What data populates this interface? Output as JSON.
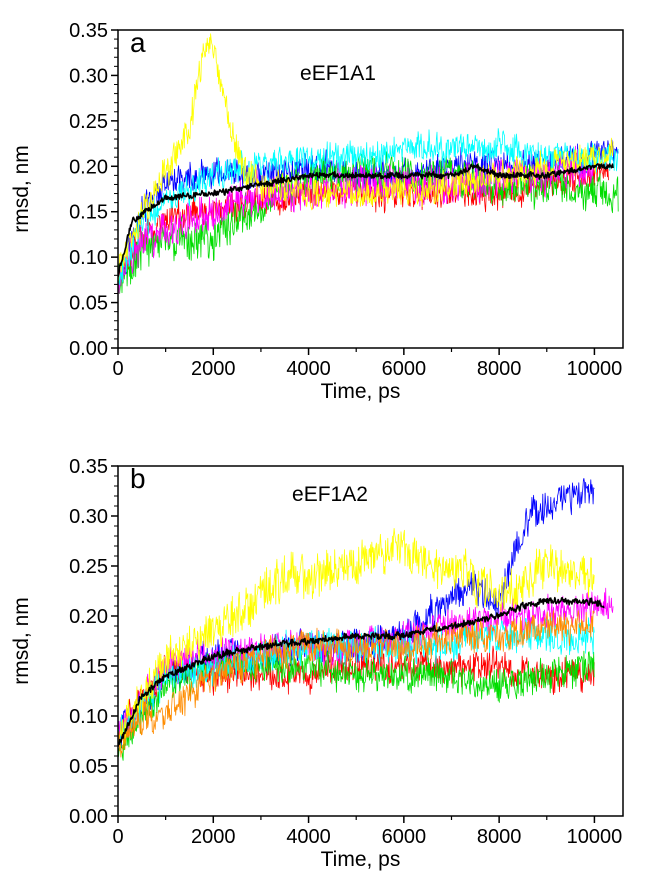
{
  "figure": {
    "panels": [
      {
        "letter": "a",
        "plot_title": "eEF1A1",
        "xlabel": "Time, ps",
        "ylabel": "rmsd, nm"
      },
      {
        "letter": "b",
        "plot_title": "eEF1A2",
        "xlabel": "Time, ps",
        "ylabel": "rmsd, nm"
      }
    ]
  },
  "chart_data": [
    {
      "type": "line",
      "panel_label": "a",
      "title": "eEF1A1",
      "xlabel": "Time, ps",
      "ylabel": "rmsd, nm",
      "xlim": [
        0,
        10600
      ],
      "ylim": [
        0.0,
        0.35
      ],
      "xticks": [
        "0",
        "2000",
        "4000",
        "6000",
        "8000",
        "10000"
      ],
      "yticks": [
        "0.00",
        "0.05",
        "0.10",
        "0.15",
        "0.20",
        "0.25",
        "0.30",
        "0.35"
      ],
      "grid": false,
      "legend": "none",
      "series": [
        {
          "color": "#0000ff",
          "x": [
            0,
            500,
            1000,
            2000,
            3000,
            4000,
            5000,
            6000,
            7000,
            8000,
            9000,
            10000,
            10500
          ],
          "y": [
            0.08,
            0.15,
            0.18,
            0.19,
            0.19,
            0.2,
            0.19,
            0.19,
            0.2,
            0.2,
            0.2,
            0.21,
            0.22
          ],
          "noise": 0.02
        },
        {
          "color": "#ff0000",
          "x": [
            0,
            500,
            1000,
            2000,
            3000,
            4000,
            5000,
            6000,
            7000,
            8000,
            9000,
            10000,
            10300
          ],
          "y": [
            0.08,
            0.12,
            0.14,
            0.15,
            0.16,
            0.17,
            0.17,
            0.17,
            0.17,
            0.17,
            0.18,
            0.19,
            0.2
          ],
          "noise": 0.02
        },
        {
          "color": "#00dd00",
          "x": [
            0,
            500,
            1000,
            2000,
            3000,
            4000,
            5000,
            6000,
            7000,
            8000,
            9000,
            10000,
            10500
          ],
          "y": [
            0.07,
            0.11,
            0.12,
            0.12,
            0.16,
            0.19,
            0.19,
            0.19,
            0.19,
            0.18,
            0.18,
            0.17,
            0.17
          ],
          "noise": 0.025
        },
        {
          "color": "#ff00ff",
          "x": [
            0,
            500,
            1000,
            2000,
            3000,
            4000,
            5000,
            6000,
            7000,
            8000,
            9000,
            10000
          ],
          "y": [
            0.08,
            0.12,
            0.13,
            0.15,
            0.17,
            0.17,
            0.18,
            0.18,
            0.18,
            0.19,
            0.19,
            0.2
          ],
          "noise": 0.025
        },
        {
          "color": "#00ffff",
          "x": [
            0,
            500,
            1000,
            2000,
            3000,
            4000,
            5000,
            6000,
            7000,
            8000,
            9000,
            10000,
            10500
          ],
          "y": [
            0.07,
            0.14,
            0.16,
            0.19,
            0.2,
            0.21,
            0.21,
            0.22,
            0.22,
            0.22,
            0.21,
            0.21,
            0.21
          ],
          "noise": 0.02
        },
        {
          "color": "#ffff00",
          "x": [
            0,
            500,
            1000,
            1500,
            1800,
            2000,
            2300,
            2600,
            3000,
            4000,
            5000,
            6000,
            7000,
            8000,
            9000,
            10000,
            10400
          ],
          "y": [
            0.08,
            0.15,
            0.19,
            0.24,
            0.33,
            0.33,
            0.26,
            0.2,
            0.18,
            0.17,
            0.17,
            0.17,
            0.18,
            0.19,
            0.2,
            0.21,
            0.22
          ],
          "noise": 0.02
        },
        {
          "color": "#000000",
          "x": [
            0,
            300,
            1000,
            2000,
            3000,
            4000,
            5000,
            6000,
            7000,
            7500,
            8000,
            9000,
            10000,
            10400
          ],
          "y": [
            0.08,
            0.14,
            0.165,
            0.17,
            0.18,
            0.19,
            0.19,
            0.19,
            0.19,
            0.2,
            0.19,
            0.19,
            0.2,
            0.2
          ],
          "noise": 0.004
        }
      ]
    },
    {
      "type": "line",
      "panel_label": "b",
      "title": "eEF1A2",
      "xlabel": "Time, ps",
      "ylabel": "rmsd, nm",
      "xlim": [
        0,
        10600
      ],
      "ylim": [
        0.0,
        0.35
      ],
      "xticks": [
        "0",
        "2000",
        "4000",
        "6000",
        "8000",
        "10000"
      ],
      "yticks": [
        "0.00",
        "0.05",
        "0.10",
        "0.15",
        "0.20",
        "0.25",
        "0.30",
        "0.35"
      ],
      "grid": false,
      "legend": "none",
      "series": [
        {
          "color": "#0000ff",
          "x": [
            0,
            1000,
            2000,
            3000,
            4000,
            5000,
            6000,
            7000,
            7500,
            8000,
            8300,
            8700,
            9000,
            9500,
            10000
          ],
          "y": [
            0.08,
            0.14,
            0.16,
            0.16,
            0.17,
            0.17,
            0.18,
            0.22,
            0.23,
            0.21,
            0.26,
            0.3,
            0.31,
            0.32,
            0.32
          ],
          "noise": 0.02
        },
        {
          "color": "#ff0000",
          "x": [
            0,
            1000,
            2000,
            3000,
            4000,
            5000,
            6000,
            7000,
            8000,
            9000,
            10000
          ],
          "y": [
            0.08,
            0.15,
            0.14,
            0.14,
            0.14,
            0.15,
            0.15,
            0.15,
            0.15,
            0.14,
            0.14
          ],
          "noise": 0.02
        },
        {
          "color": "#00dd00",
          "x": [
            0,
            1000,
            2000,
            3000,
            4000,
            5000,
            6000,
            7000,
            8000,
            9000,
            10000
          ],
          "y": [
            0.07,
            0.13,
            0.15,
            0.15,
            0.15,
            0.14,
            0.14,
            0.14,
            0.13,
            0.14,
            0.15
          ],
          "noise": 0.02
        },
        {
          "color": "#ff00ff",
          "x": [
            0,
            1000,
            2000,
            3000,
            4000,
            5000,
            6000,
            7000,
            8000,
            9000,
            10000,
            10400
          ],
          "y": [
            0.08,
            0.15,
            0.16,
            0.17,
            0.17,
            0.17,
            0.18,
            0.19,
            0.2,
            0.2,
            0.21,
            0.21
          ],
          "noise": 0.02
        },
        {
          "color": "#00ffff",
          "x": [
            0,
            1000,
            2000,
            3000,
            4000,
            5000,
            6000,
            7000,
            8000,
            9000,
            10000
          ],
          "y": [
            0.08,
            0.14,
            0.15,
            0.16,
            0.17,
            0.17,
            0.17,
            0.17,
            0.18,
            0.18,
            0.18
          ],
          "noise": 0.02
        },
        {
          "color": "#ffff00",
          "x": [
            0,
            1000,
            2000,
            3000,
            3500,
            4000,
            5000,
            6000,
            6500,
            7000,
            8000,
            9000,
            10000
          ],
          "y": [
            0.08,
            0.16,
            0.18,
            0.22,
            0.24,
            0.24,
            0.25,
            0.27,
            0.25,
            0.25,
            0.22,
            0.25,
            0.24
          ],
          "noise": 0.025
        },
        {
          "color": "#ff8c00",
          "x": [
            0,
            500,
            1000,
            1500,
            2000,
            3000,
            4000,
            5000,
            6000,
            7000,
            8000,
            9000,
            10000
          ],
          "y": [
            0.07,
            0.1,
            0.1,
            0.12,
            0.14,
            0.16,
            0.17,
            0.17,
            0.17,
            0.18,
            0.18,
            0.19,
            0.19
          ],
          "noise": 0.02
        },
        {
          "color": "#000000",
          "x": [
            0,
            500,
            1000,
            2000,
            3000,
            4000,
            5000,
            6000,
            7000,
            8000,
            8500,
            9000,
            10000,
            10200
          ],
          "y": [
            0.07,
            0.12,
            0.14,
            0.16,
            0.17,
            0.175,
            0.18,
            0.18,
            0.19,
            0.2,
            0.21,
            0.215,
            0.215,
            0.21
          ],
          "noise": 0.004
        }
      ]
    }
  ]
}
